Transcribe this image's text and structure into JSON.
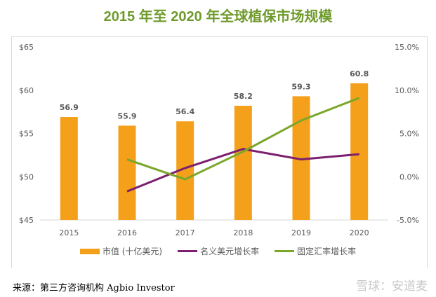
{
  "chart_data": {
    "type": "bar+line",
    "title": "2015 年至 2020 年全球植保市场规模",
    "categories": [
      "2015",
      "2016",
      "2017",
      "2018",
      "2019",
      "2020"
    ],
    "left_axis": {
      "min": 45,
      "max": 65,
      "ticks": [
        "$45",
        "$50",
        "$55",
        "$60",
        "$65"
      ],
      "tick_values": [
        45,
        50,
        55,
        60,
        65
      ]
    },
    "right_axis": {
      "min": -5,
      "max": 15,
      "ticks": [
        "-5.0%",
        "0.0%",
        "5.0%",
        "10.0%",
        "15.0%"
      ],
      "tick_values": [
        -5,
        0,
        5,
        10,
        15
      ]
    },
    "grid": false,
    "legend_position": "bottom",
    "series": [
      {
        "name": "市值 (十亿美元)",
        "type": "bar",
        "axis": "left",
        "color": "#f5a01a",
        "values": [
          56.9,
          55.9,
          56.4,
          58.2,
          59.3,
          60.8
        ],
        "labels": [
          "56.9",
          "55.9",
          "56.4",
          "58.2",
          "59.3",
          "60.8"
        ]
      },
      {
        "name": "名义美元增长率",
        "type": "line",
        "axis": "right",
        "color": "#7b1f6e",
        "values": [
          null,
          -1.7,
          1.0,
          3.2,
          2.0,
          2.6
        ]
      },
      {
        "name": "固定汇率增长率",
        "type": "line",
        "axis": "right",
        "color": "#7aa62a",
        "values": [
          null,
          2.0,
          -0.3,
          2.9,
          6.5,
          9.1
        ]
      }
    ]
  },
  "footer": {
    "source": "来源：第三方咨询机构 Agbio Investor",
    "watermark": "雪球：安道麦"
  }
}
